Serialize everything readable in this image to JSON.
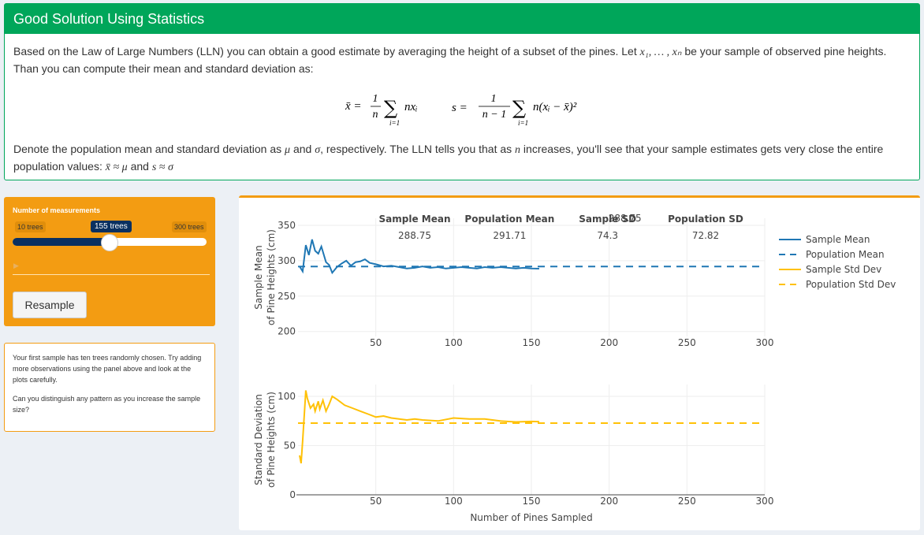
{
  "header": {
    "title": "Good Solution Using Statistics"
  },
  "intro": {
    "p1_a": "Based on the Law of Large Numbers (LLN) you can obtain a good estimate by averaging the height of a subset of the pines. Let ",
    "p1_math": "x₁, … , xₙ",
    "p1_b": " be your sample of observed pine heights.",
    "p2": "Than you can compute their mean and standard deviation as:",
    "p3_a": "Denote the population mean and standard deviation as ",
    "p3_mu": "μ",
    "p3_and": " and ",
    "p3_sigma": "σ",
    "p3_b": ", respectively. The LLN tells you that as ",
    "p3_n": "n",
    "p3_c": " increases, you'll see that your sample estimates gets very close the entire",
    "p4_a": "population values: ",
    "p4_m1": "x̄ ≈ μ",
    "p4_and": " and ",
    "p4_m2": "s ≈ σ"
  },
  "formula": {
    "mean_lhs": "x̄ =",
    "mean_num": "1",
    "mean_den": "n",
    "mean_sum": "∑",
    "mean_term": "nxᵢ",
    "mean_idx": "i=1",
    "sd_lhs": "s =",
    "sd_num": "1",
    "sd_den": "n − 1",
    "sd_sum": "∑",
    "sd_term": "n(xᵢ − x̄)²",
    "sd_idx": "i=1"
  },
  "controls": {
    "label": "Number of measurements",
    "slider_min_label": "10 trees",
    "slider_max_label": "300 trees",
    "slider_value_label": "155 trees",
    "slider_min": 10,
    "slider_max": 300,
    "slider_value": 155,
    "play_icon": "play-icon",
    "resample_label": "Resample"
  },
  "note": {
    "p1": "Your first sample has ten trees randomly chosen. Try adding more observations using the panel above and look at the plots carefully.",
    "p2": "Can you distinguish any pattern as you increase the sample size?"
  },
  "colors": {
    "green": "#00a65a",
    "orange": "#f39c12",
    "blue": "#1f77b4",
    "gold": "#ffc107",
    "navy": "#0a3060"
  },
  "chart_data": [
    {
      "type": "line",
      "title": "",
      "xlabel": "",
      "ylabel": "Sample Mean of Pine Heights (cm)",
      "ylabel_line1": "Sample Mean",
      "ylabel_line2": "of Pine Heights (cm)",
      "xlim": [
        0,
        300
      ],
      "ylim": [
        193,
        360
      ],
      "xticks": [
        50,
        100,
        150,
        200,
        250,
        300
      ],
      "yticks": [
        200,
        250,
        300,
        350
      ],
      "series": [
        {
          "name": "Sample Mean",
          "style": "solid",
          "color": "#1f77b4",
          "x": [
            1,
            3,
            5,
            7,
            9,
            11,
            13,
            15,
            18,
            20,
            22,
            25,
            28,
            31,
            34,
            37,
            40,
            43,
            46,
            50,
            55,
            60,
            65,
            70,
            75,
            80,
            85,
            90,
            95,
            100,
            105,
            110,
            115,
            120,
            125,
            130,
            135,
            140,
            145,
            150,
            155
          ],
          "y": [
            292,
            285,
            322,
            308,
            330,
            314,
            310,
            320,
            298,
            294,
            283,
            291,
            296,
            300,
            293,
            298,
            299,
            302,
            297,
            295,
            292,
            293,
            291,
            289,
            290,
            292,
            290,
            291,
            289,
            290,
            291,
            290,
            289,
            291,
            290,
            291,
            290,
            289,
            290,
            289,
            288.75
          ]
        },
        {
          "name": "Population Mean",
          "style": "dash",
          "color": "#1f77b4",
          "x": [
            0,
            300
          ],
          "y": [
            291.71,
            291.71
          ]
        }
      ],
      "annotations": [
        {
          "label": "Sample Mean",
          "value": "288.75",
          "color": "#1f77b4",
          "x": 75,
          "y": 362
        },
        {
          "label": "Population Mean",
          "value": "291.71",
          "color": "#1f77b4",
          "x": 136,
          "y": 362
        },
        {
          "label": "Sample SD",
          "value": "74.3",
          "color": "#ffc107",
          "x": 199,
          "y": 362
        },
        {
          "label": "Population SD",
          "value": "72.82",
          "color": "#ffc107",
          "x": 262,
          "y": 362
        }
      ],
      "overlap_value": "288.75",
      "legend": [
        {
          "name": "Sample Mean",
          "style": "solid",
          "color": "#1f77b4"
        },
        {
          "name": "Population Mean",
          "style": "dash",
          "color": "#1f77b4"
        },
        {
          "name": "Sample Std Dev",
          "style": "solid",
          "color": "#ffc107"
        },
        {
          "name": "Population Std Dev",
          "style": "dash",
          "color": "#ffc107"
        }
      ]
    },
    {
      "type": "line",
      "title": "",
      "xlabel": "Number of Pines Sampled",
      "ylabel": "Standard Deviation of Pine Heights (cm)",
      "ylabel_line1": "Standard Deviation",
      "ylabel_line2": "of Pine Heights (cm)",
      "xlim": [
        0,
        300
      ],
      "ylim": [
        0,
        112
      ],
      "xticks": [
        50,
        100,
        150,
        200,
        250,
        300
      ],
      "yticks": [
        0,
        50,
        100
      ],
      "series": [
        {
          "name": "Sample Std Dev",
          "style": "solid",
          "color": "#ffc107",
          "x": [
            1,
            2,
            3,
            5,
            6,
            8,
            10,
            11,
            13,
            14,
            16,
            18,
            20,
            22,
            25,
            30,
            35,
            40,
            45,
            50,
            55,
            60,
            65,
            70,
            75,
            80,
            90,
            100,
            110,
            120,
            130,
            140,
            150,
            155
          ],
          "y": [
            40,
            32,
            55,
            106,
            98,
            88,
            92,
            85,
            95,
            87,
            96,
            85,
            92,
            100,
            97,
            91,
            88,
            85,
            82,
            79,
            80,
            78,
            77,
            76,
            77,
            76,
            75,
            78,
            77,
            77,
            75,
            74,
            74.5,
            74.3
          ]
        },
        {
          "name": "Population Std Dev",
          "style": "dash",
          "color": "#ffc107",
          "x": [
            0,
            300
          ],
          "y": [
            72.82,
            72.82
          ]
        }
      ]
    }
  ]
}
